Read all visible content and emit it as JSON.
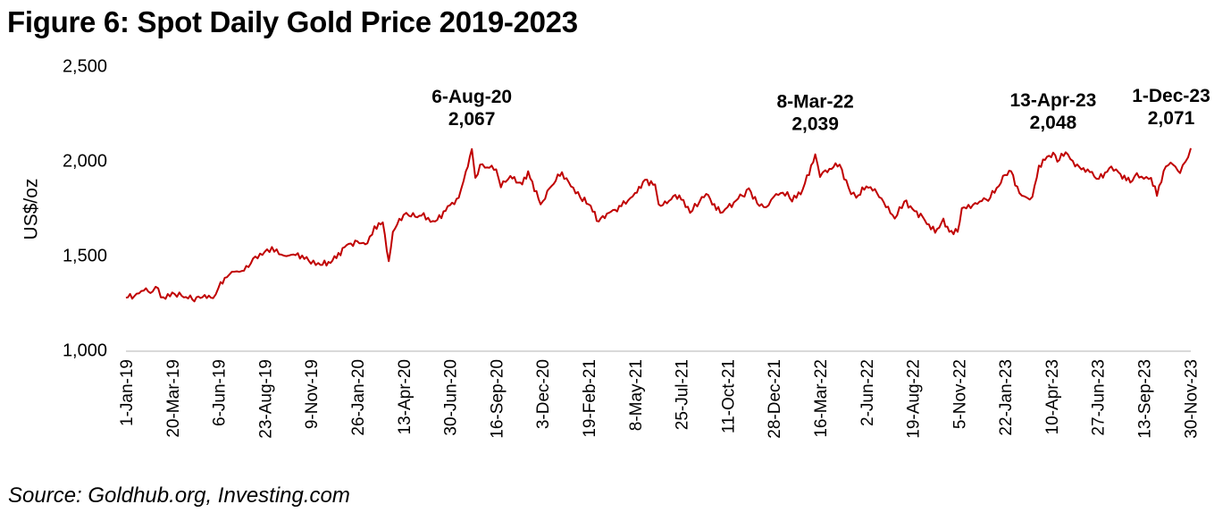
{
  "title": "Figure 6: Spot Daily Gold Price 2019-2023",
  "source": "Source: Goldhub.org, Investing.com",
  "chart_data": {
    "type": "line",
    "title": "Figure 6: Spot Daily Gold Price 2019-2023",
    "xlabel": "",
    "ylabel": "US$/oz",
    "ylim": [
      1000,
      2500
    ],
    "yticks": [
      1000,
      1500,
      2000,
      2500
    ],
    "ytick_labels": [
      "1,000",
      "1,500",
      "2,000",
      "2,500"
    ],
    "xlim": [
      "2019-01-01",
      "2023-12-01"
    ],
    "xtick_dates": [
      "2019-01-01",
      "2019-03-20",
      "2019-06-06",
      "2019-08-23",
      "2019-11-09",
      "2020-01-26",
      "2020-04-13",
      "2020-06-30",
      "2020-09-16",
      "2020-12-03",
      "2021-02-19",
      "2021-05-08",
      "2021-07-25",
      "2021-10-11",
      "2021-12-28",
      "2022-03-16",
      "2022-06-02",
      "2022-08-19",
      "2022-11-05",
      "2023-01-22",
      "2023-04-10",
      "2023-06-27",
      "2023-09-13",
      "2023-11-30"
    ],
    "xtick_labels": [
      "1-Jan-19",
      "20-Mar-19",
      "6-Jun-19",
      "23-Aug-19",
      "9-Nov-19",
      "26-Jan-20",
      "13-Apr-20",
      "30-Jun-20",
      "16-Sep-20",
      "3-Dec-20",
      "19-Feb-21",
      "8-May-21",
      "25-Jul-21",
      "11-Oct-21",
      "28-Dec-21",
      "16-Mar-22",
      "2-Jun-22",
      "19-Aug-22",
      "5-Nov-22",
      "22-Jan-23",
      "10-Apr-23",
      "27-Jun-23",
      "13-Sep-23",
      "30-Nov-23"
    ],
    "grid": false,
    "legend": "none",
    "series": [
      {
        "name": "Spot gold price",
        "color": "#c00000",
        "points": [
          [
            "2019-01-01",
            1282
          ],
          [
            "2019-01-15",
            1290
          ],
          [
            "2019-01-31",
            1320
          ],
          [
            "2019-02-15",
            1315
          ],
          [
            "2019-02-20",
            1340
          ],
          [
            "2019-03-05",
            1285
          ],
          [
            "2019-03-20",
            1310
          ],
          [
            "2019-04-05",
            1292
          ],
          [
            "2019-04-23",
            1272
          ],
          [
            "2019-05-10",
            1285
          ],
          [
            "2019-05-28",
            1280
          ],
          [
            "2019-06-06",
            1335
          ],
          [
            "2019-06-20",
            1390
          ],
          [
            "2019-07-03",
            1420
          ],
          [
            "2019-07-19",
            1425
          ],
          [
            "2019-08-07",
            1500
          ],
          [
            "2019-08-23",
            1525
          ],
          [
            "2019-09-04",
            1550
          ],
          [
            "2019-09-20",
            1510
          ],
          [
            "2019-10-03",
            1505
          ],
          [
            "2019-10-25",
            1505
          ],
          [
            "2019-11-09",
            1462
          ],
          [
            "2019-11-25",
            1455
          ],
          [
            "2019-12-15",
            1478
          ],
          [
            "2020-01-08",
            1560
          ],
          [
            "2020-01-26",
            1580
          ],
          [
            "2020-02-12",
            1570
          ],
          [
            "2020-02-24",
            1660
          ],
          [
            "2020-03-09",
            1680
          ],
          [
            "2020-03-19",
            1475
          ],
          [
            "2020-03-26",
            1630
          ],
          [
            "2020-04-13",
            1720
          ],
          [
            "2020-04-22",
            1715
          ],
          [
            "2020-05-13",
            1715
          ],
          [
            "2020-06-05",
            1685
          ],
          [
            "2020-06-30",
            1770
          ],
          [
            "2020-07-15",
            1810
          ],
          [
            "2020-07-27",
            1950
          ],
          [
            "2020-08-06",
            2067
          ],
          [
            "2020-08-12",
            1915
          ],
          [
            "2020-08-20",
            1985
          ],
          [
            "2020-09-01",
            1970
          ],
          [
            "2020-09-16",
            1960
          ],
          [
            "2020-09-24",
            1865
          ],
          [
            "2020-10-10",
            1925
          ],
          [
            "2020-10-30",
            1880
          ],
          [
            "2020-11-09",
            1950
          ],
          [
            "2020-11-30",
            1775
          ],
          [
            "2020-12-15",
            1860
          ],
          [
            "2021-01-05",
            1945
          ],
          [
            "2021-01-20",
            1870
          ],
          [
            "2021-02-05",
            1810
          ],
          [
            "2021-02-19",
            1775
          ],
          [
            "2021-03-08",
            1685
          ],
          [
            "2021-03-25",
            1730
          ],
          [
            "2021-04-15",
            1765
          ],
          [
            "2021-05-08",
            1835
          ],
          [
            "2021-05-25",
            1905
          ],
          [
            "2021-06-11",
            1880
          ],
          [
            "2021-06-17",
            1775
          ],
          [
            "2021-07-01",
            1780
          ],
          [
            "2021-07-15",
            1825
          ],
          [
            "2021-07-25",
            1800
          ],
          [
            "2021-08-09",
            1730
          ],
          [
            "2021-08-25",
            1790
          ],
          [
            "2021-09-05",
            1830
          ],
          [
            "2021-09-29",
            1730
          ],
          [
            "2021-10-11",
            1760
          ],
          [
            "2021-11-05",
            1820
          ],
          [
            "2021-11-16",
            1860
          ],
          [
            "2021-11-30",
            1780
          ],
          [
            "2021-12-15",
            1760
          ],
          [
            "2021-12-28",
            1815
          ],
          [
            "2022-01-20",
            1840
          ],
          [
            "2022-01-28",
            1790
          ],
          [
            "2022-02-15",
            1855
          ],
          [
            "2022-03-08",
            2039
          ],
          [
            "2022-03-16",
            1920
          ],
          [
            "2022-03-25",
            1955
          ],
          [
            "2022-04-18",
            1985
          ],
          [
            "2022-05-03",
            1865
          ],
          [
            "2022-05-16",
            1810
          ],
          [
            "2022-06-02",
            1870
          ],
          [
            "2022-06-20",
            1835
          ],
          [
            "2022-07-05",
            1760
          ],
          [
            "2022-07-20",
            1700
          ],
          [
            "2022-08-05",
            1790
          ],
          [
            "2022-08-19",
            1750
          ],
          [
            "2022-09-05",
            1710
          ],
          [
            "2022-09-26",
            1625
          ],
          [
            "2022-10-10",
            1700
          ],
          [
            "2022-10-20",
            1630
          ],
          [
            "2022-11-03",
            1630
          ],
          [
            "2022-11-10",
            1755
          ],
          [
            "2022-11-25",
            1755
          ],
          [
            "2022-12-10",
            1790
          ],
          [
            "2022-12-28",
            1810
          ],
          [
            "2023-01-22",
            1930
          ],
          [
            "2023-02-01",
            1950
          ],
          [
            "2023-02-15",
            1835
          ],
          [
            "2023-02-28",
            1810
          ],
          [
            "2023-03-09",
            1815
          ],
          [
            "2023-03-20",
            1980
          ],
          [
            "2023-04-13",
            2048
          ],
          [
            "2023-04-20",
            2000
          ],
          [
            "2023-05-04",
            2050
          ],
          [
            "2023-05-20",
            1975
          ],
          [
            "2023-06-10",
            1960
          ],
          [
            "2023-06-29",
            1910
          ],
          [
            "2023-07-20",
            1975
          ],
          [
            "2023-08-01",
            1945
          ],
          [
            "2023-08-21",
            1890
          ],
          [
            "2023-09-01",
            1940
          ],
          [
            "2023-09-13",
            1910
          ],
          [
            "2023-09-25",
            1915
          ],
          [
            "2023-10-05",
            1820
          ],
          [
            "2023-10-20",
            1975
          ],
          [
            "2023-11-01",
            1985
          ],
          [
            "2023-11-13",
            1940
          ],
          [
            "2023-11-22",
            2000
          ],
          [
            "2023-12-01",
            2071
          ]
        ]
      }
    ],
    "annotations": [
      {
        "date": "2020-08-06",
        "label_date": "6-Aug-20",
        "label_value": "2,067",
        "value": 2067
      },
      {
        "date": "2022-03-08",
        "label_date": "8-Mar-22",
        "label_value": "2,039",
        "value": 2039
      },
      {
        "date": "2023-04-13",
        "label_date": "13-Apr-23",
        "label_value": "2,048",
        "value": 2048
      },
      {
        "date": "2023-12-01",
        "label_date": "1-Dec-23",
        "label_value": "2,071",
        "value": 2071
      }
    ]
  }
}
